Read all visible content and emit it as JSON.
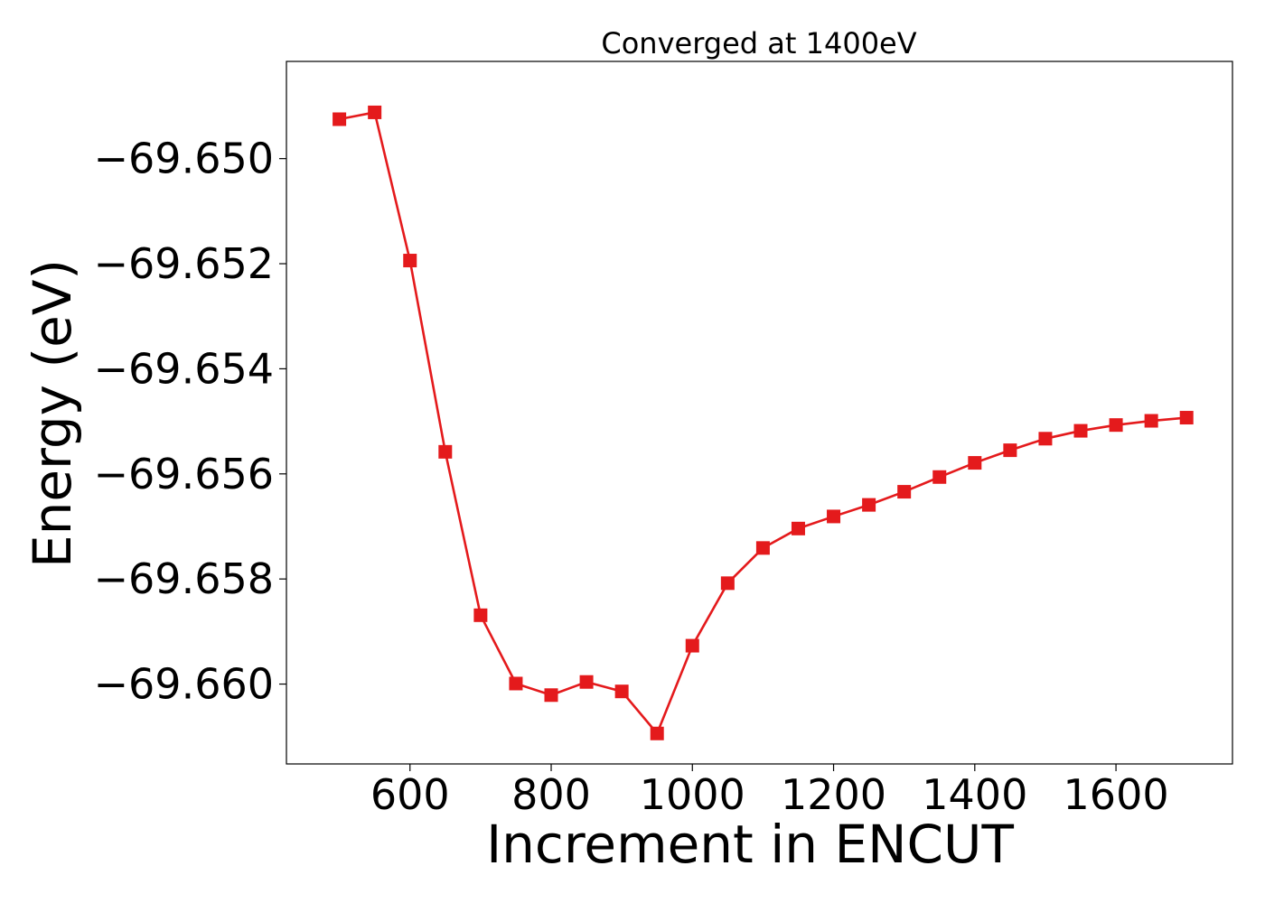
{
  "chart_data": {
    "type": "line",
    "title": "Converged at 1400eV",
    "xlabel": "Increment in ENCUT",
    "ylabel": "Energy (eV)",
    "xlim": [
      425,
      1765
    ],
    "ylim": [
      -69.66152,
      -69.64815
    ],
    "xticks": [
      600,
      800,
      1000,
      1200,
      1400,
      1600
    ],
    "xtick_labels": [
      "600",
      "800",
      "1000",
      "1200",
      "1400",
      "1600"
    ],
    "yticks": [
      -69.65,
      -69.652,
      -69.654,
      -69.656,
      -69.658,
      -69.66
    ],
    "ytick_labels": [
      "−69.650",
      "−69.652",
      "−69.654",
      "−69.656",
      "−69.658",
      "−69.660"
    ],
    "grid": false,
    "series": [
      {
        "color": "#e41a1c",
        "marker": "square",
        "x": [
          500,
          550,
          600,
          650,
          700,
          750,
          800,
          850,
          900,
          950,
          1000,
          1050,
          1100,
          1150,
          1200,
          1250,
          1300,
          1350,
          1400,
          1450,
          1500,
          1550,
          1600,
          1650,
          1700
        ],
        "y": [
          -69.64925,
          -69.64912,
          -69.65194,
          -69.65558,
          -69.65869,
          -69.65999,
          -69.66021,
          -69.65996,
          -69.66014,
          -69.66094,
          -69.65927,
          -69.65808,
          -69.65741,
          -69.65704,
          -69.65681,
          -69.65659,
          -69.65634,
          -69.65606,
          -69.65579,
          -69.65555,
          -69.65533,
          -69.65518,
          -69.65507,
          -69.65499,
          -69.65493
        ]
      }
    ]
  }
}
